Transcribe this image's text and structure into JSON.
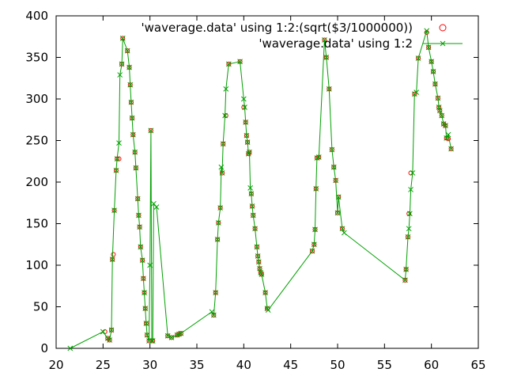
{
  "chart_data": {
    "type": "scatter",
    "title": "",
    "xlabel": "",
    "ylabel": "",
    "xlim": [
      20,
      65
    ],
    "ylim": [
      0,
      400
    ],
    "x_ticks": [
      20,
      25,
      30,
      35,
      40,
      45,
      50,
      55,
      60,
      65
    ],
    "y_ticks": [
      0,
      50,
      100,
      150,
      200,
      250,
      300,
      350,
      400
    ],
    "x_tick_labels": [
      "20",
      "25",
      "30",
      "35",
      "40",
      "45",
      "50",
      "55",
      "60",
      "65"
    ],
    "y_tick_labels": [
      "0",
      "50",
      "100",
      "150",
      "200",
      "250",
      "300",
      "350",
      "400"
    ],
    "grid": false,
    "legend_position": "top-right",
    "series": [
      {
        "name": "'waverage.data' using 1:2:(sqrt($3/1000000))",
        "style": "circles",
        "color": "#ff0000",
        "points": [
          [
            25.2,
            20,
            0.3
          ],
          [
            25.5,
            12,
            0.4
          ],
          [
            25.7,
            10,
            0.4
          ],
          [
            25.9,
            22,
            0.3
          ],
          [
            26.0,
            107,
            0.3
          ],
          [
            26.1,
            113,
            0.45
          ],
          [
            26.2,
            166,
            0.3
          ],
          [
            26.4,
            214,
            0.3
          ],
          [
            26.5,
            228,
            0.3
          ],
          [
            26.7,
            228,
            0.3
          ],
          [
            27.0,
            342,
            0.3
          ],
          [
            27.1,
            373,
            0.3
          ],
          [
            27.6,
            358,
            0.3
          ],
          [
            27.8,
            338,
            0.3
          ],
          [
            27.9,
            317,
            0.3
          ],
          [
            28.0,
            296,
            0.3
          ],
          [
            28.1,
            277,
            0.3
          ],
          [
            28.2,
            257,
            0.3
          ],
          [
            28.4,
            236,
            0.3
          ],
          [
            28.5,
            217,
            0.45
          ],
          [
            28.7,
            180,
            0.3
          ],
          [
            28.8,
            160,
            0.3
          ],
          [
            28.9,
            146,
            0.45
          ],
          [
            29.0,
            122,
            0.3
          ],
          [
            29.2,
            106,
            0.3
          ],
          [
            29.3,
            84,
            0.3
          ],
          [
            29.4,
            67,
            0.3
          ],
          [
            29.5,
            48,
            0.3
          ],
          [
            29.6,
            30,
            0.3
          ],
          [
            29.7,
            16,
            0.3
          ],
          [
            29.9,
            9,
            0.3
          ],
          [
            30.1,
            262,
            0.3
          ],
          [
            30.3,
            9,
            0.3
          ],
          [
            31.9,
            15,
            0.3
          ],
          [
            32.3,
            13,
            0.3
          ],
          [
            32.9,
            16,
            0.3
          ],
          [
            33.1,
            17,
            0.3
          ],
          [
            33.3,
            18,
            0.3
          ],
          [
            36.8,
            40,
            0.3
          ],
          [
            37.0,
            67,
            0.3
          ],
          [
            37.2,
            131,
            0.3
          ],
          [
            37.3,
            151,
            0.3
          ],
          [
            37.5,
            169,
            0.3
          ],
          [
            37.7,
            211,
            0.3
          ],
          [
            37.8,
            246,
            0.3
          ],
          [
            38.1,
            280,
            0.3
          ],
          [
            38.4,
            342,
            0.3
          ],
          [
            39.6,
            345,
            0.3
          ],
          [
            40.0,
            290,
            0.3
          ],
          [
            40.2,
            272,
            0.3
          ],
          [
            40.3,
            256,
            0.3
          ],
          [
            40.4,
            248,
            0.3
          ],
          [
            40.5,
            234,
            0.3
          ],
          [
            40.6,
            236,
            0.3
          ],
          [
            40.8,
            186,
            0.45
          ],
          [
            40.9,
            171,
            0.3
          ],
          [
            41.0,
            160,
            0.3
          ],
          [
            41.2,
            144,
            0.3
          ],
          [
            41.4,
            122,
            0.3
          ],
          [
            41.5,
            111,
            0.3
          ],
          [
            41.6,
            104,
            0.3
          ],
          [
            41.7,
            96,
            0.3
          ],
          [
            41.8,
            91,
            0.3
          ],
          [
            41.9,
            89,
            0.3
          ],
          [
            42.3,
            67,
            0.3
          ],
          [
            42.5,
            48,
            0.3
          ],
          [
            47.3,
            117,
            0.3
          ],
          [
            47.5,
            125,
            0.3
          ],
          [
            47.6,
            143,
            0.3
          ],
          [
            47.7,
            192,
            0.3
          ],
          [
            47.8,
            229,
            0.3
          ],
          [
            48.0,
            230,
            0.3
          ],
          [
            48.6,
            371,
            0.3
          ],
          [
            48.8,
            350,
            0.3
          ],
          [
            49.1,
            312,
            0.3
          ],
          [
            49.4,
            239,
            0.3
          ],
          [
            49.6,
            218,
            0.3
          ],
          [
            49.8,
            202,
            0.3
          ],
          [
            50.0,
            163,
            0.3
          ],
          [
            50.1,
            182,
            0.3
          ],
          [
            50.5,
            144,
            0.3
          ],
          [
            57.2,
            82,
            0.3
          ],
          [
            57.3,
            95,
            0.3
          ],
          [
            57.5,
            134,
            0.3
          ],
          [
            57.6,
            162,
            0.3
          ],
          [
            57.8,
            211,
            0.3
          ],
          [
            58.2,
            306,
            0.3
          ],
          [
            58.6,
            349,
            0.3
          ],
          [
            59.5,
            380,
            0.3
          ],
          [
            59.7,
            362,
            0.3
          ],
          [
            60.0,
            345,
            0.3
          ],
          [
            60.2,
            333,
            0.3
          ],
          [
            60.4,
            318,
            0.3
          ],
          [
            60.7,
            301,
            0.3
          ],
          [
            60.8,
            290,
            0.3
          ],
          [
            60.9,
            286,
            0.3
          ],
          [
            61.1,
            280,
            0.3
          ],
          [
            61.3,
            270,
            0.3
          ],
          [
            61.5,
            268,
            0.3
          ],
          [
            61.6,
            253,
            0.3
          ],
          [
            61.8,
            252,
            0.3
          ],
          [
            62.1,
            240,
            0.3
          ]
        ]
      },
      {
        "name": "'waverage.data' using 1:2",
        "style": "linespoints",
        "color": "#00a000",
        "points": [
          [
            21.5,
            0
          ],
          [
            25.0,
            20
          ],
          [
            25.5,
            12
          ],
          [
            25.7,
            10
          ],
          [
            25.9,
            22
          ],
          [
            26.0,
            107
          ],
          [
            26.2,
            166
          ],
          [
            26.4,
            214
          ],
          [
            26.5,
            228
          ],
          [
            26.7,
            247
          ],
          [
            26.8,
            329
          ],
          [
            27.0,
            342
          ],
          [
            27.1,
            373
          ],
          [
            27.6,
            358
          ],
          [
            27.8,
            338
          ],
          [
            27.9,
            317
          ],
          [
            28.0,
            296
          ],
          [
            28.1,
            277
          ],
          [
            28.2,
            257
          ],
          [
            28.4,
            236
          ],
          [
            28.5,
            217
          ],
          [
            28.7,
            180
          ],
          [
            28.8,
            160
          ],
          [
            28.9,
            146
          ],
          [
            29.0,
            122
          ],
          [
            29.2,
            106
          ],
          [
            29.3,
            84
          ],
          [
            29.4,
            67
          ],
          [
            29.5,
            48
          ],
          [
            29.6,
            30
          ],
          [
            29.7,
            16
          ],
          [
            29.9,
            9
          ],
          [
            30.0,
            100
          ],
          [
            30.1,
            262
          ],
          [
            30.2,
            9
          ],
          [
            30.3,
            9
          ],
          [
            30.4,
            174
          ],
          [
            30.7,
            170
          ],
          [
            31.9,
            15
          ],
          [
            32.3,
            13
          ],
          [
            32.9,
            16
          ],
          [
            33.1,
            17
          ],
          [
            33.3,
            18
          ],
          [
            36.6,
            44
          ],
          [
            36.8,
            40
          ],
          [
            37.0,
            67
          ],
          [
            37.2,
            131
          ],
          [
            37.3,
            151
          ],
          [
            37.5,
            169
          ],
          [
            37.6,
            218
          ],
          [
            37.7,
            211
          ],
          [
            37.8,
            246
          ],
          [
            38.0,
            280
          ],
          [
            38.1,
            312
          ],
          [
            38.4,
            342
          ],
          [
            39.6,
            345
          ],
          [
            40.0,
            300
          ],
          [
            40.1,
            290
          ],
          [
            40.2,
            272
          ],
          [
            40.3,
            256
          ],
          [
            40.4,
            248
          ],
          [
            40.5,
            234
          ],
          [
            40.6,
            236
          ],
          [
            40.7,
            193
          ],
          [
            40.8,
            186
          ],
          [
            40.9,
            171
          ],
          [
            41.0,
            160
          ],
          [
            41.2,
            144
          ],
          [
            41.4,
            122
          ],
          [
            41.5,
            111
          ],
          [
            41.6,
            104
          ],
          [
            41.7,
            96
          ],
          [
            41.8,
            91
          ],
          [
            41.9,
            89
          ],
          [
            42.3,
            67
          ],
          [
            42.5,
            48
          ],
          [
            42.6,
            46
          ],
          [
            47.3,
            117
          ],
          [
            47.5,
            125
          ],
          [
            47.6,
            143
          ],
          [
            47.7,
            192
          ],
          [
            47.8,
            229
          ],
          [
            48.0,
            230
          ],
          [
            48.6,
            371
          ],
          [
            48.8,
            350
          ],
          [
            49.1,
            312
          ],
          [
            49.4,
            239
          ],
          [
            49.6,
            218
          ],
          [
            49.8,
            202
          ],
          [
            50.0,
            163
          ],
          [
            50.1,
            182
          ],
          [
            50.5,
            144
          ],
          [
            50.7,
            139
          ],
          [
            57.2,
            82
          ],
          [
            57.3,
            95
          ],
          [
            57.5,
            134
          ],
          [
            57.6,
            144
          ],
          [
            57.7,
            162
          ],
          [
            57.8,
            191
          ],
          [
            58.0,
            211
          ],
          [
            58.2,
            306
          ],
          [
            58.4,
            308
          ],
          [
            58.6,
            349
          ],
          [
            59.5,
            382
          ],
          [
            59.7,
            362
          ],
          [
            60.0,
            345
          ],
          [
            60.2,
            333
          ],
          [
            60.4,
            318
          ],
          [
            60.7,
            301
          ],
          [
            60.8,
            290
          ],
          [
            60.9,
            286
          ],
          [
            61.1,
            280
          ],
          [
            61.3,
            270
          ],
          [
            61.5,
            268
          ],
          [
            61.6,
            253
          ],
          [
            61.8,
            257
          ],
          [
            62.1,
            240
          ]
        ]
      }
    ]
  }
}
